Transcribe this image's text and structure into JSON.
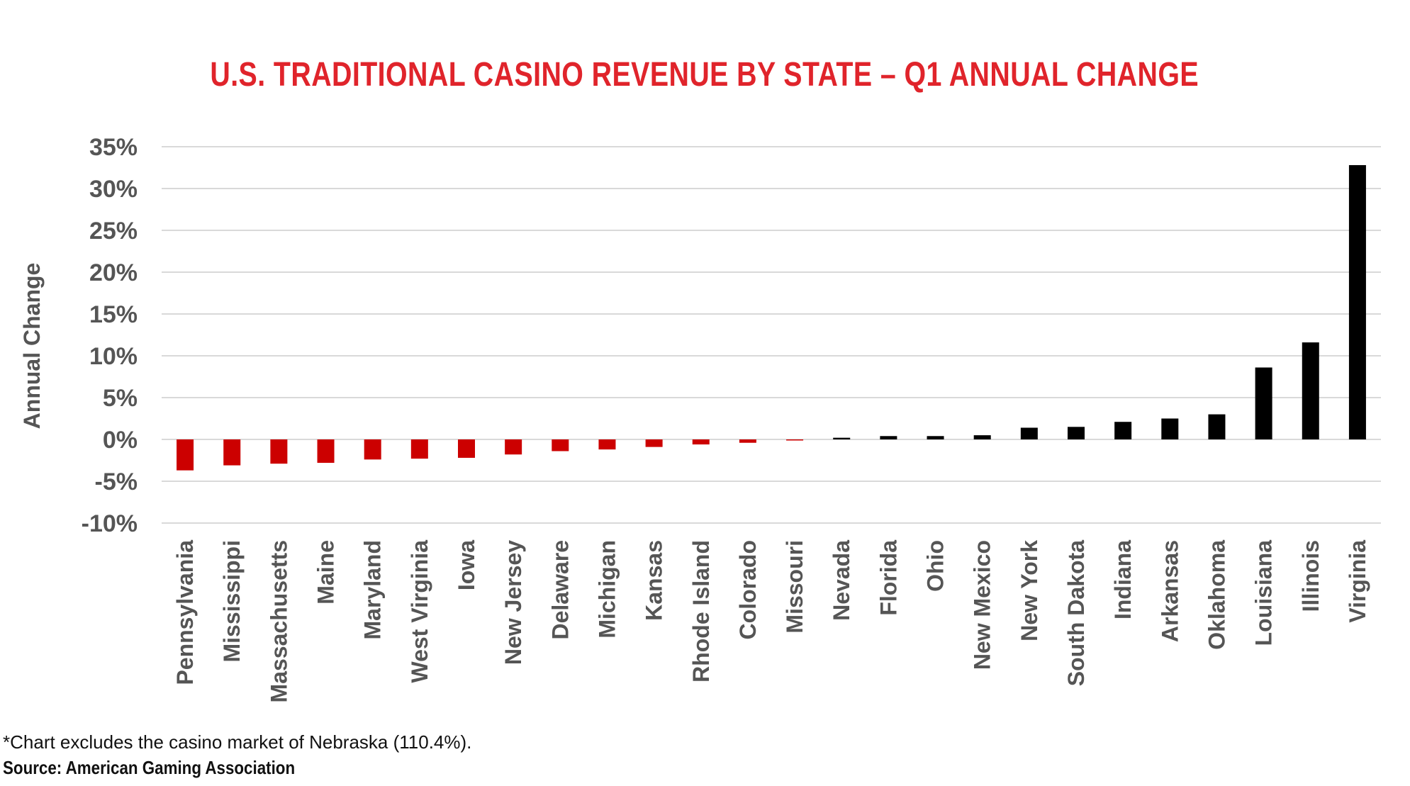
{
  "chart_data": {
    "type": "bar",
    "title": "U.S. TRADITIONAL CASINO REVENUE BY STATE – Q1 ANNUAL CHANGE",
    "ylabel": "Annual Change",
    "xlabel": "",
    "ylim": [
      -10,
      35
    ],
    "y_ticks": [
      35,
      30,
      25,
      20,
      15,
      10,
      5,
      0,
      -5,
      -10
    ],
    "y_tick_labels": [
      "35%",
      "30%",
      "25%",
      "20%",
      "15%",
      "10%",
      "5%",
      "0%",
      "-5%",
      "-10%"
    ],
    "grid": true,
    "categories": [
      "Pennsylvania",
      "Mississippi",
      "Massachusetts",
      "Maine",
      "Maryland",
      "West Virginia",
      "Iowa",
      "New Jersey",
      "Delaware",
      "Michigan",
      "Kansas",
      "Rhode Island",
      "Colorado",
      "Missouri",
      "Nevada",
      "Florida",
      "Ohio",
      "New Mexico",
      "New York",
      "South Dakota",
      "Indiana",
      "Arkansas",
      "Oklahoma",
      "Louisiana",
      "Illinois",
      "Virginia"
    ],
    "values": [
      -3.7,
      -3.1,
      -2.9,
      -2.8,
      -2.4,
      -2.3,
      -2.2,
      -1.8,
      -1.4,
      -1.2,
      -0.9,
      -0.6,
      -0.4,
      -0.1,
      0.2,
      0.4,
      0.4,
      0.5,
      1.4,
      1.5,
      2.1,
      2.5,
      3.0,
      8.6,
      11.6,
      32.8
    ],
    "colors": {
      "negative": "#cc0000",
      "positive": "#000000",
      "title": "#e0242b",
      "axis_text": "#555555",
      "grid": "#d9d9d9"
    }
  },
  "footnote": "*Chart excludes the casino market of Nebraska (110.4%).",
  "source": "Source: American Gaming Association"
}
